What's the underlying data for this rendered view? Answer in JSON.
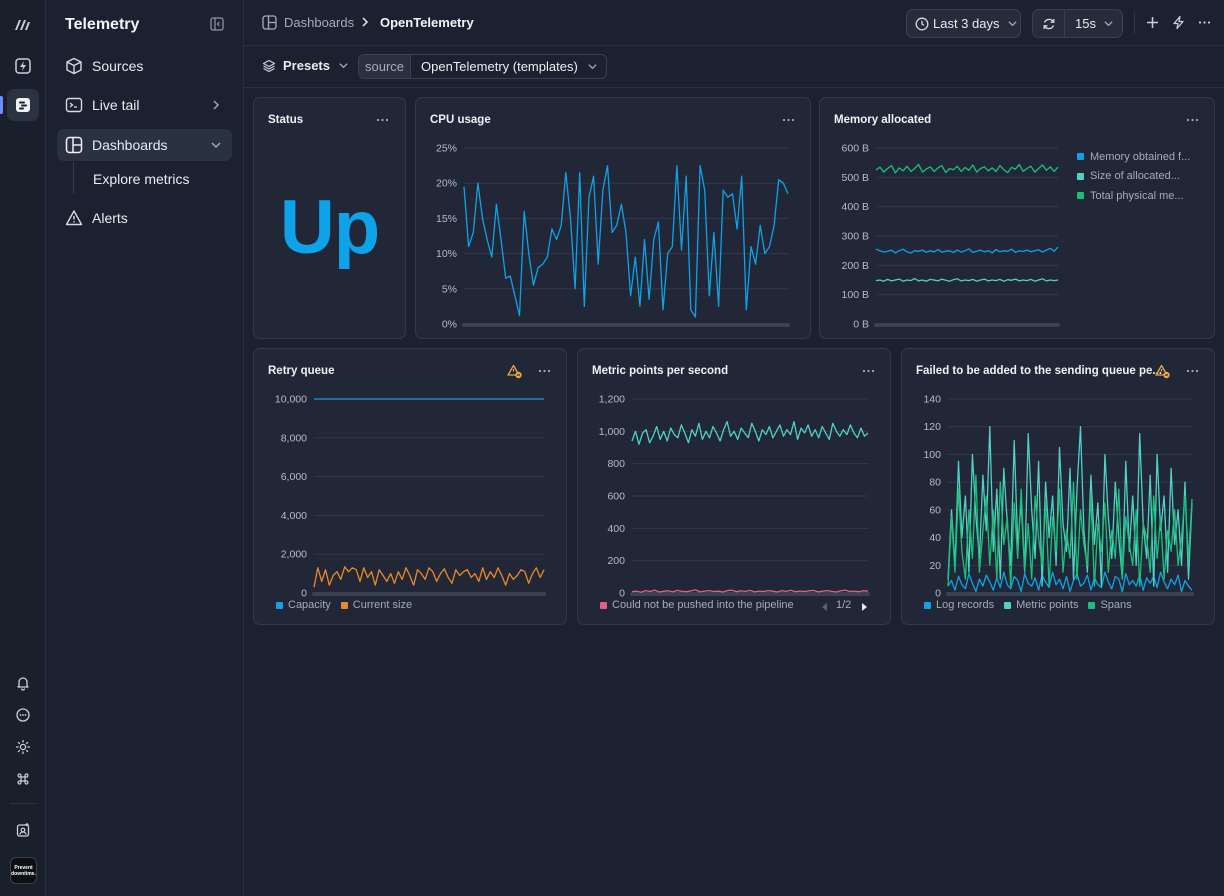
{
  "app": {
    "title": "Telemetry",
    "avatar_text": "Prevent downtime."
  },
  "sidebar": {
    "items": [
      {
        "label": "Sources",
        "icon": "cube-icon"
      },
      {
        "label": "Live tail",
        "icon": "terminal-icon"
      },
      {
        "label": "Dashboards",
        "icon": "dashboard-icon"
      },
      {
        "label": "Explore metrics",
        "icon": ""
      },
      {
        "label": "Alerts",
        "icon": "warning-icon"
      }
    ]
  },
  "breadcrumb": {
    "parent": "Dashboards",
    "current": "OpenTelemetry"
  },
  "toolbar": {
    "time_range": "Last 3 days",
    "refresh_interval": "15s"
  },
  "filters": {
    "presets_label": "Presets",
    "source_key": "source",
    "source_value": "OpenTelemetry (templates)"
  },
  "colors": {
    "accent": "#0ea2e8",
    "orange": "#e8892a",
    "teal": "#4fd1c5",
    "green": "#19c07a",
    "pink": "#e85d83"
  },
  "panels": {
    "status": {
      "title": "Status",
      "value": "Up"
    },
    "cpu": {
      "title": "CPU usage"
    },
    "memory": {
      "title": "Memory allocated",
      "legend": [
        "Memory obtained f...",
        "Size of allocated...",
        "Total physical me..."
      ]
    },
    "retry": {
      "title": "Retry queue",
      "legend": [
        "Capacity",
        "Current size"
      ]
    },
    "metric_points": {
      "title": "Metric points per second",
      "legend": [
        "Could not be pushed into the pipeline"
      ],
      "pager": "1/2"
    },
    "failed": {
      "title": "Failed to be added to the sending queue pe...",
      "legend": [
        "Log records",
        "Metric points",
        "Spans"
      ]
    }
  },
  "chart_data": [
    {
      "type": "line",
      "title": "CPU usage",
      "y_ticks": [
        "0%",
        "5%",
        "10%",
        "15%",
        "20%",
        "25%"
      ],
      "ylim": [
        0,
        25
      ],
      "series": [
        {
          "name": "",
          "color": "#0ea2e8",
          "values": [
            19.5,
            11,
            13,
            20,
            15,
            12,
            9.5,
            17,
            12,
            6.5,
            6.8,
            4,
            1.2,
            16,
            10,
            5.5,
            8,
            8.5,
            9.5,
            13.5,
            12,
            14,
            21.5,
            15,
            5,
            21.5,
            2.5,
            18,
            21,
            8.5,
            19,
            22.5,
            13,
            14,
            17,
            13,
            4,
            9.5,
            2.5,
            12,
            3.5,
            12,
            14.5,
            2,
            10,
            11,
            22.5,
            10.5,
            21,
            2,
            1,
            22.5,
            19,
            4,
            13,
            2.5,
            19,
            18,
            18.5,
            13.5,
            21,
            2,
            11,
            8.5,
            14,
            10,
            11,
            14,
            20.5,
            20,
            18.5
          ]
        }
      ]
    },
    {
      "type": "line",
      "title": "Memory allocated",
      "y_ticks": [
        "0 B",
        "100 B",
        "200 B",
        "300 B",
        "400 B",
        "500 B",
        "600 B"
      ],
      "ylim": [
        0,
        600
      ],
      "series": [
        {
          "name": "Memory obtained f...",
          "color": "#0ea2e8",
          "values": [
            255,
            250,
            245,
            248,
            252,
            242,
            250,
            255,
            246,
            242,
            250,
            248,
            252,
            244,
            250,
            246,
            254,
            245,
            248,
            250,
            243,
            252,
            245,
            250,
            256,
            244,
            248,
            252,
            246,
            250,
            242,
            254,
            246,
            250,
            248,
            255,
            244,
            250,
            247,
            252,
            246,
            250,
            253,
            245,
            252,
            258,
            248,
            262
          ]
        },
        {
          "name": "Size of allocated...",
          "color": "#4fd1c5",
          "values": [
            148,
            150,
            146,
            152,
            147,
            150,
            153,
            146,
            150,
            148,
            155,
            147,
            150,
            146,
            152,
            150,
            147,
            153,
            149,
            146,
            151,
            154,
            147,
            150,
            148,
            152,
            146,
            150,
            153,
            147,
            150,
            148,
            152,
            146,
            151,
            149,
            153,
            147,
            150,
            148,
            152,
            146,
            150,
            154,
            147,
            150,
            148,
            150
          ]
        },
        {
          "name": "Total physical me...",
          "color": "#19c07a",
          "values": [
            525,
            535,
            518,
            530,
            540,
            515,
            532,
            522,
            538,
            520,
            530,
            544,
            518,
            528,
            536,
            520,
            532,
            540,
            516,
            530,
            526,
            538,
            520,
            534,
            524,
            542,
            518,
            530,
            536,
            522,
            532,
            520,
            540,
            526,
            516,
            534,
            528,
            544,
            520,
            530,
            538,
            518,
            530,
            542,
            524,
            536,
            520,
            535
          ]
        }
      ]
    },
    {
      "type": "line",
      "title": "Retry queue",
      "y_ticks": [
        "0",
        "2,000",
        "4,000",
        "6,000",
        "8,000",
        "10,000"
      ],
      "ylim": [
        0,
        10000
      ],
      "series": [
        {
          "name": "Capacity",
          "color": "#0ea2e8",
          "values": [
            10000,
            10000
          ]
        },
        {
          "name": "Current size",
          "color": "#e8892a",
          "values": [
            300,
            1300,
            600,
            1200,
            400,
            900,
            1100,
            700,
            1350,
            1100,
            1300,
            1200,
            600,
            1300,
            800,
            1100,
            400,
            1200,
            900,
            600,
            1000,
            500,
            1100,
            700,
            1300,
            900,
            400,
            1200,
            1000,
            700,
            1300,
            1100,
            600,
            1000,
            1250,
            800,
            500,
            1200,
            900,
            1100,
            1200,
            800,
            1000,
            600,
            1300,
            700,
            1100,
            800,
            1300,
            900,
            400,
            1000,
            700,
            900,
            1200,
            1100,
            500,
            1000,
            1300,
            800,
            1200
          ]
        }
      ]
    },
    {
      "type": "line",
      "title": "Metric points per second",
      "y_ticks": [
        "0",
        "200",
        "400",
        "600",
        "800",
        "1,000",
        "1,200"
      ],
      "ylim": [
        0,
        1200
      ],
      "series": [
        {
          "name": "",
          "color": "#4fd1c5",
          "values": [
            940,
            1000,
            920,
            990,
            1010,
            930,
            970,
            1030,
            950,
            1000,
            940,
            1020,
            980,
            960,
            1040,
            990,
            930,
            1010,
            970,
            1050,
            950,
            1000,
            960,
            1030,
            990,
            940,
            1010,
            1060,
            970,
            1000,
            950,
            1020,
            990,
            960,
            1050,
            1000,
            940,
            1010,
            980,
            1030,
            960,
            1000,
            1040,
            970,
            1010,
            980,
            1060,
            950,
            1020,
            990,
            1040,
            970,
            1010,
            960,
            1030,
            990,
            950,
            1050,
            1000,
            970,
            1010,
            980,
            1040,
            990,
            960,
            1020,
            970,
            990
          ]
        },
        {
          "name": "Could not be pushed into the pipeline",
          "color": "#e85d83",
          "values": [
            8,
            12,
            5,
            15,
            9,
            18,
            6,
            11,
            14,
            7,
            16,
            10,
            8,
            13,
            19,
            7,
            12,
            15,
            9,
            11,
            6,
            14,
            18,
            8,
            13,
            10,
            16,
            7,
            12,
            9,
            15,
            11,
            6,
            14,
            10,
            17,
            8,
            12,
            9,
            13,
            16,
            7,
            11,
            15,
            10,
            6,
            13,
            18,
            9,
            12,
            8,
            14,
            11
          ]
        }
      ]
    },
    {
      "type": "line",
      "title": "Failed to be added to the sending queue pe...",
      "y_ticks": [
        "0",
        "20",
        "40",
        "60",
        "80",
        "100",
        "120",
        "140"
      ],
      "ylim": [
        0,
        140
      ],
      "series": [
        {
          "name": "Log records",
          "color": "#0ea2e8",
          "values": [
            5,
            9,
            2,
            12,
            6,
            3,
            14,
            7,
            1,
            10,
            5,
            13,
            8,
            2,
            11,
            4,
            15,
            6,
            3,
            12,
            9,
            1,
            14,
            7,
            5,
            11,
            2,
            13,
            8,
            4,
            15,
            6,
            10,
            3,
            12,
            1,
            9,
            14,
            5,
            7,
            13,
            2,
            11,
            6,
            4,
            15,
            8,
            3,
            12,
            10,
            1,
            14,
            6,
            9,
            5,
            13,
            2,
            11,
            7,
            12,
            4,
            15,
            8,
            3,
            10,
            6,
            13,
            1,
            9,
            5,
            2
          ]
        },
        {
          "name": "Metric points",
          "color": "#4fd1c5",
          "values": [
            10,
            60,
            20,
            95,
            40,
            70,
            15,
            100,
            55,
            25,
            85,
            45,
            120,
            30,
            75,
            10,
            90,
            50,
            20,
            110,
            35,
            65,
            15,
            115,
            60,
            25,
            95,
            5,
            80,
            40,
            70,
            20,
            105,
            50,
            30,
            90,
            10,
            75,
            120,
            45,
            15,
            85,
            35,
            65,
            5,
            100,
            55,
            25,
            80,
            40,
            10,
            95,
            30,
            70,
            20,
            115,
            50,
            25,
            85,
            5,
            100,
            45,
            70,
            15,
            90,
            35,
            60,
            20,
            80,
            10,
            65
          ]
        },
        {
          "name": "Spans",
          "color": "#19c07a",
          "values": [
            5,
            55,
            15,
            75,
            30,
            10,
            60,
            25,
            85,
            15,
            45,
            70,
            20,
            60,
            10,
            80,
            35,
            55,
            5,
            65,
            25,
            75,
            15,
            50,
            10,
            70,
            40,
            20,
            65,
            5,
            55,
            30,
            75,
            15,
            45,
            25,
            80,
            10,
            60,
            35,
            20,
            70,
            5,
            50,
            30,
            65,
            15,
            45,
            25,
            75,
            10,
            55,
            35,
            20,
            60,
            5,
            50,
            40,
            15,
            70,
            25,
            55,
            10,
            45,
            30,
            60,
            20,
            40,
            70,
            25,
            68
          ]
        }
      ]
    }
  ]
}
